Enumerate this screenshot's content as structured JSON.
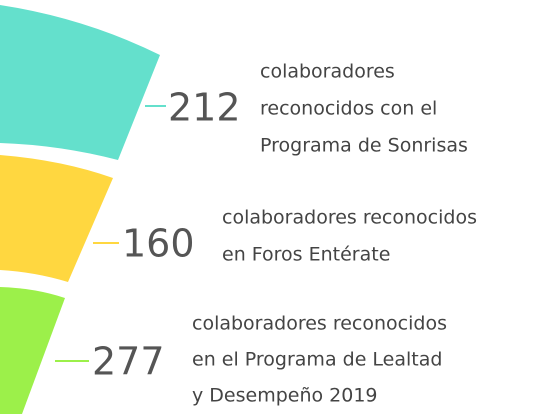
{
  "items": [
    {
      "number": 212,
      "lines": [
        "colaboradores",
        "reconocidos con el",
        "Programa de Sonrisas"
      ]
    },
    {
      "number": 160,
      "lines": [
        "colaboradores reconocidos",
        "en Foros Entérate"
      ]
    },
    {
      "number": 277,
      "lines": [
        "colaboradores reconocidos",
        "en el Programa de Lealtad",
        "y Desempeño 2019"
      ]
    }
  ]
}
